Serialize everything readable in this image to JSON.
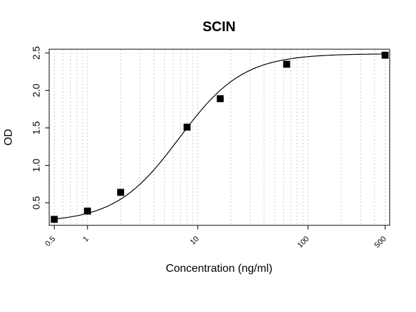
{
  "chart_data": {
    "type": "scatter",
    "title": "SCIN",
    "xlabel": "Concentration (ng/ml)",
    "ylabel": "OD",
    "x_scale": "log",
    "xlim": [
      0.45,
      550
    ],
    "ylim": [
      0.2,
      2.55
    ],
    "x_ticks": [
      0.5,
      1,
      10,
      100,
      500
    ],
    "x_tick_labels": [
      "0.5",
      "1",
      "10",
      "100",
      "500"
    ],
    "y_ticks": [
      0.5,
      1.0,
      1.5,
      2.0,
      2.5
    ],
    "y_tick_labels": [
      "0.5",
      "1.0",
      "1.5",
      "2.0",
      "2.5"
    ],
    "grid": "vertical-dotted",
    "x_grid_lines": [
      0.5,
      0.6,
      0.7,
      0.8,
      0.9,
      1,
      2,
      3,
      4,
      5,
      6,
      7,
      8,
      9,
      10,
      20,
      30,
      40,
      50,
      60,
      70,
      80,
      90,
      100,
      200,
      300,
      400,
      500
    ],
    "series": [
      {
        "x": [
          0.5,
          1,
          2,
          8,
          16,
          64,
          500
        ],
        "y": [
          0.28,
          0.39,
          0.64,
          1.51,
          1.89,
          2.35,
          2.47
        ],
        "marker": "square",
        "color": "#000000"
      }
    ],
    "fit_curve": {
      "model": "4PL",
      "bottom": 0.24,
      "top": 2.49,
      "ec50": 6.8,
      "hill": 1.5,
      "color": "#000000"
    }
  }
}
